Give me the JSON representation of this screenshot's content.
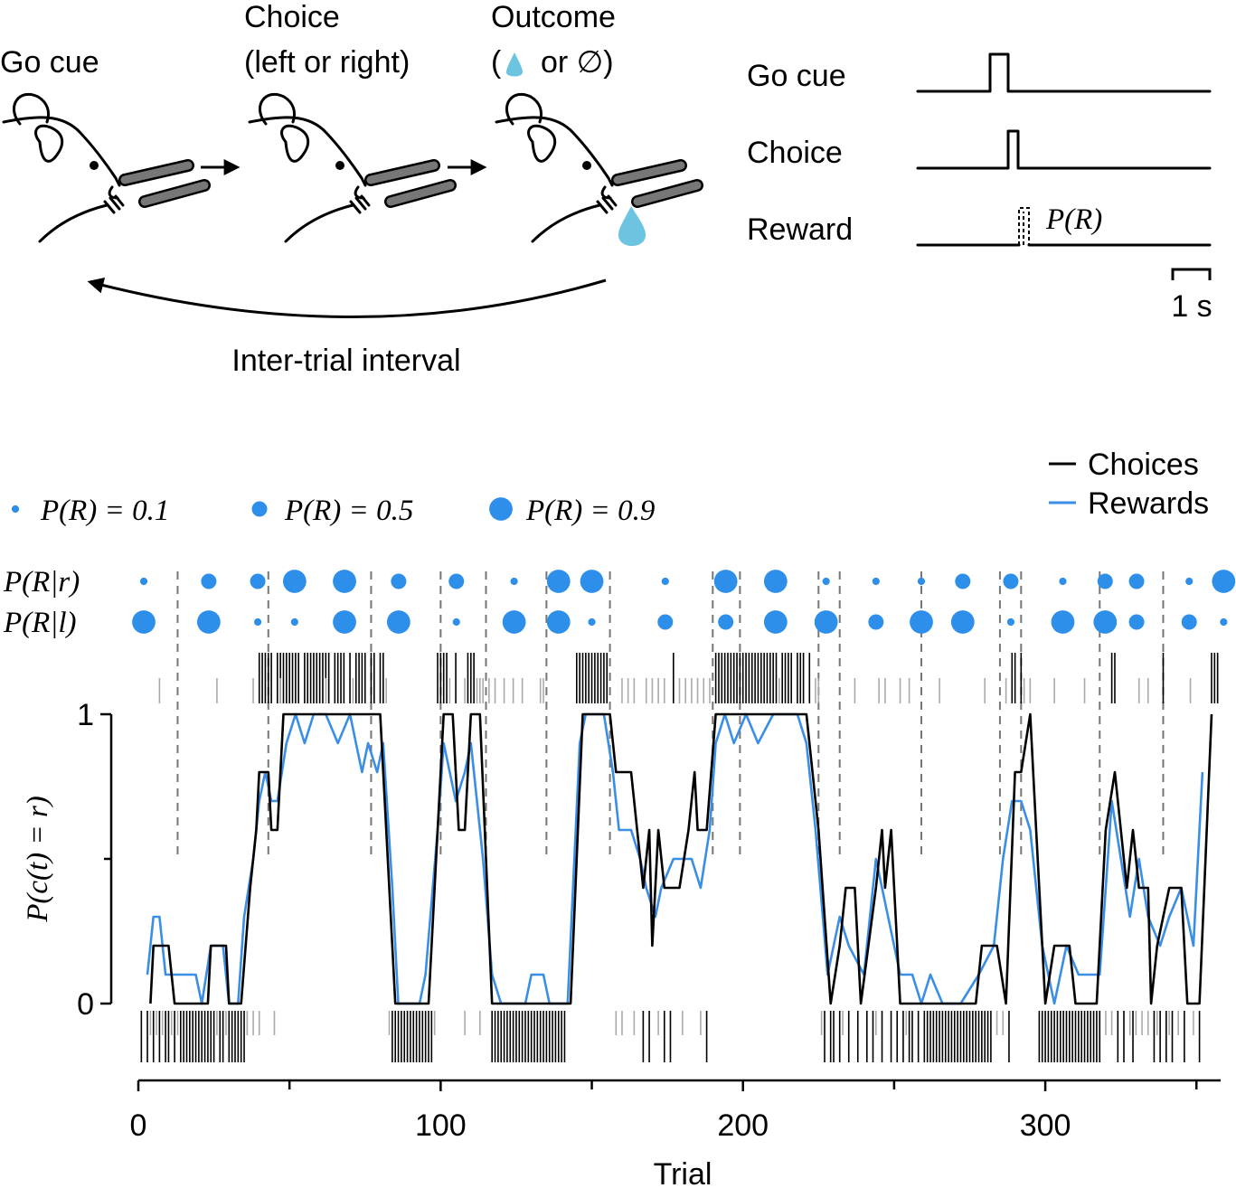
{
  "schematic": {
    "step_labels": [
      "Go cue",
      "Choice",
      "(left or right)",
      "Outcome"
    ],
    "outcome_open": "(",
    "outcome_close": "or ∅)",
    "loop_label": "Inter-trial interval"
  },
  "timing": {
    "rows": [
      "Go cue",
      "Choice",
      "Reward"
    ],
    "reward_label": "P(R)",
    "scale_label": "1 s"
  },
  "chart_data": {
    "type": "line",
    "xlabel": "Trial",
    "ylabel": "P(c(t) = r)",
    "xlim": [
      0,
      358
    ],
    "ylim": [
      0,
      1
    ],
    "xticks": [
      0,
      100,
      200,
      300
    ],
    "xminor_ticks": [
      50,
      150,
      250,
      350
    ],
    "yticks": [
      0,
      1
    ],
    "yminor_ticks": [
      0.5
    ],
    "series": [
      {
        "name": "Choices",
        "color": "#000000",
        "x": [
          4,
          5,
          10,
          12,
          23,
          24,
          29,
          30,
          34,
          37,
          39,
          40,
          43,
          44,
          46,
          48,
          80,
          85,
          96,
          101,
          104,
          106,
          108,
          110,
          113,
          117,
          143,
          147,
          156,
          158,
          163,
          165,
          167,
          169,
          170,
          172,
          174,
          179,
          182,
          184,
          185,
          188,
          191,
          221,
          225,
          229,
          232,
          234,
          237,
          239,
          244,
          246,
          247,
          249,
          252,
          277,
          279,
          284,
          287,
          290,
          292,
          295,
          297,
          300,
          303,
          308,
          310,
          317,
          320,
          323,
          327,
          329,
          331,
          334,
          335,
          337,
          341,
          345,
          347,
          351,
          355
        ],
        "values": [
          0,
          0.2,
          0.2,
          0,
          0,
          0.2,
          0.2,
          0,
          0,
          0.4,
          0.6,
          0.8,
          0.8,
          0.6,
          0.6,
          1,
          1,
          0,
          0,
          1,
          1,
          0.6,
          0.6,
          1,
          1,
          0,
          0,
          1,
          1,
          0.8,
          0.8,
          0.6,
          0.4,
          0.6,
          0.2,
          0.6,
          0.4,
          0.4,
          0.6,
          0.8,
          0.6,
          0.6,
          1,
          1,
          0.6,
          0,
          0.2,
          0.4,
          0.4,
          0,
          0.4,
          0.6,
          0.4,
          0.6,
          0,
          0,
          0.2,
          0.2,
          0,
          0.8,
          0.8,
          1,
          0.6,
          0,
          0.2,
          0.2,
          0,
          0,
          0.6,
          0.8,
          0.4,
          0.6,
          0.4,
          0.4,
          0,
          0.2,
          0.4,
          0.4,
          0,
          0,
          1
        ]
      },
      {
        "name": "Rewards",
        "color": "#3a8ee6",
        "x": [
          3,
          5,
          7,
          9,
          19,
          21,
          24,
          28,
          30,
          33,
          35,
          38,
          40,
          42,
          44,
          46,
          49,
          52,
          55,
          58,
          62,
          66,
          70,
          72,
          74,
          76,
          79,
          81,
          84,
          86,
          93,
          95,
          99,
          101,
          103,
          105,
          108,
          110,
          114,
          117,
          120,
          128,
          130,
          134,
          136,
          142,
          146,
          148,
          154,
          157,
          159,
          163,
          166,
          168,
          171,
          173,
          177,
          180,
          183,
          186,
          189,
          191,
          194,
          197,
          201,
          205,
          210,
          218,
          221,
          224,
          228,
          232,
          235,
          240,
          244,
          248,
          252,
          256,
          259,
          262,
          266,
          272,
          278,
          283,
          286,
          289,
          292,
          295,
          299,
          303,
          307,
          311,
          318,
          322,
          325,
          328,
          331,
          334,
          338,
          341,
          345,
          349,
          352
        ],
        "values": [
          0.1,
          0.3,
          0.3,
          0.1,
          0.1,
          0,
          0.2,
          0.2,
          0,
          0,
          0.3,
          0.5,
          0.7,
          0.8,
          0.7,
          0.7,
          0.9,
          1,
          0.9,
          1,
          1,
          0.9,
          1,
          0.9,
          0.8,
          0.9,
          0.8,
          0.9,
          0.4,
          0,
          0,
          0.1,
          0.6,
          0.9,
          0.8,
          0.7,
          0.8,
          0.9,
          0.5,
          0.1,
          0,
          0,
          0.1,
          0.1,
          0,
          0,
          0.9,
          1,
          1,
          0.8,
          0.6,
          0.6,
          0.5,
          0.4,
          0.3,
          0.4,
          0.5,
          0.5,
          0.5,
          0.4,
          0.6,
          0.9,
          1,
          0.9,
          1,
          0.9,
          1,
          1,
          0.9,
          0.6,
          0.1,
          0.3,
          0.2,
          0.1,
          0.5,
          0.3,
          0.1,
          0.1,
          0,
          0.1,
          0,
          0,
          0.1,
          0.2,
          0.5,
          0.7,
          0.7,
          0.6,
          0.2,
          0,
          0.2,
          0.1,
          0.1,
          0.7,
          0.5,
          0.3,
          0.5,
          0.3,
          0.2,
          0.3,
          0.4,
          0.2,
          0.8
        ]
      }
    ],
    "blocks": {
      "row_labels": [
        "P(R|r)",
        "P(R|l)"
      ],
      "color": "#2e8fea",
      "x": [
        1.8,
        23.3,
        39.5,
        51.7,
        68.2,
        86.1,
        105.2,
        124.3,
        139,
        150,
        174.3,
        194.3,
        210.8,
        227.5,
        244,
        259,
        272.7,
        288.6,
        305.8,
        319.8,
        330.2,
        347.6,
        359
      ],
      "right": [
        0.1,
        0.5,
        0.5,
        0.9,
        0.9,
        0.5,
        0.5,
        0.1,
        0.9,
        0.9,
        0.1,
        0.9,
        0.9,
        0.1,
        0.1,
        0.1,
        0.5,
        0.5,
        0.1,
        0.5,
        0.5,
        0.1,
        0.9
      ],
      "left": [
        0.9,
        0.9,
        0.1,
        0.1,
        0.9,
        0.9,
        0.1,
        0.9,
        0.9,
        0.1,
        0.5,
        0.5,
        0.9,
        0.9,
        0.5,
        0.9,
        0.9,
        0.1,
        0.9,
        0.9,
        0.5,
        0.5,
        0.1
      ]
    },
    "dot_legend": [
      {
        "value": 0.1,
        "label": "P(R) = 0.1"
      },
      {
        "value": 0.5,
        "label": "P(R) = 0.5"
      },
      {
        "value": 0.9,
        "label": "P(R) = 0.9"
      }
    ],
    "block_boundaries": [
      13,
      43,
      77,
      100,
      115,
      135,
      156,
      190,
      199,
      225,
      232,
      259,
      285,
      292,
      318,
      339
    ],
    "rasters": {
      "right_rewarded": {
        "color": "#000000",
        "trials": [
          40,
          41,
          42,
          43,
          44,
          46,
          47,
          48,
          49,
          50,
          51,
          52,
          53,
          55,
          56,
          57,
          58,
          59,
          60,
          61,
          62,
          63,
          65,
          66,
          67,
          68,
          70,
          72,
          73,
          74,
          75,
          77,
          78,
          80,
          81,
          99,
          100,
          101,
          102,
          105,
          109,
          110,
          111,
          145,
          146,
          147,
          148,
          149,
          150,
          151,
          152,
          153,
          154,
          155,
          177,
          191,
          192,
          193,
          194,
          195,
          196,
          197,
          198,
          199,
          200,
          201,
          202,
          203,
          204,
          205,
          206,
          207,
          208,
          209,
          210,
          211,
          213,
          214,
          215,
          216,
          218,
          219,
          220,
          222,
          289,
          290,
          292,
          322,
          323,
          339,
          355,
          356,
          357
        ]
      },
      "right_unrewarded": {
        "color": "#aaaaaa",
        "trials": [
          7,
          26,
          38,
          47,
          62,
          71,
          82,
          103,
          108,
          112,
          113,
          114,
          116,
          118,
          121,
          124,
          127,
          133,
          134,
          160,
          162,
          164,
          168,
          170,
          172,
          174,
          179,
          181,
          183,
          185,
          187,
          189,
          212,
          224,
          225,
          237,
          245,
          247,
          252,
          255,
          265,
          280,
          287,
          293,
          295,
          303,
          313,
          331,
          334,
          348
        ]
      },
      "left_rewarded": {
        "color": "#000000",
        "trials": [
          1,
          3,
          5,
          7,
          9,
          10,
          12,
          14,
          15,
          16,
          17,
          18,
          19,
          20,
          21,
          22,
          23,
          24,
          25,
          27,
          28,
          30,
          31,
          32,
          33,
          34,
          35,
          84,
          85,
          86,
          87,
          88,
          89,
          90,
          91,
          92,
          93,
          94,
          95,
          96,
          97,
          117,
          118,
          119,
          120,
          121,
          122,
          123,
          124,
          125,
          126,
          127,
          128,
          129,
          130,
          131,
          132,
          133,
          134,
          135,
          136,
          137,
          138,
          139,
          140,
          141,
          167,
          169,
          174,
          176,
          188,
          227,
          229,
          230,
          232,
          235,
          238,
          241,
          243,
          246,
          249,
          251,
          253,
          255,
          256,
          258,
          260,
          261,
          262,
          263,
          264,
          265,
          266,
          267,
          268,
          269,
          270,
          271,
          272,
          273,
          274,
          275,
          276,
          277,
          278,
          279,
          280,
          281,
          282,
          288,
          298,
          299,
          300,
          301,
          302,
          303,
          304,
          305,
          306,
          307,
          308,
          309,
          310,
          311,
          312,
          313,
          314,
          315,
          316,
          317,
          318,
          324,
          326,
          329,
          336,
          338,
          340,
          342,
          346,
          351
        ]
      },
      "left_unrewarded": {
        "color": "#aaaaaa",
        "trials": [
          4,
          6,
          8,
          11,
          13,
          26,
          29,
          36,
          38,
          40,
          45,
          83,
          98,
          108,
          113,
          158,
          160,
          164,
          172,
          180,
          186,
          226,
          233,
          244,
          254,
          284,
          286,
          320,
          322,
          328,
          330,
          332,
          334,
          337,
          341,
          344,
          349
        ]
      }
    }
  }
}
